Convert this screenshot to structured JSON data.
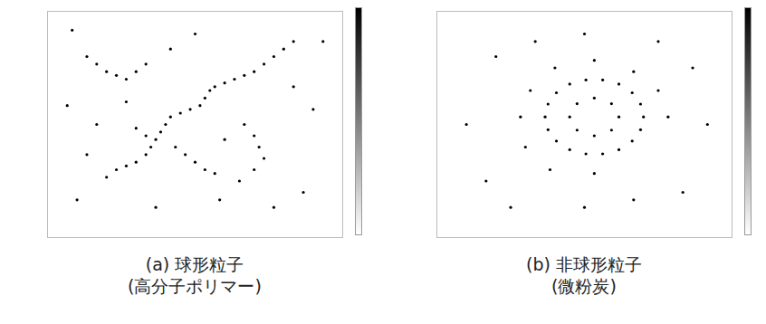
{
  "chart_data": [
    {
      "type": "scatter",
      "caption": [
        "(a) 球形粒子",
        "(高分子ポリマー)"
      ],
      "xlim": [
        -30,
        30
      ],
      "ylim": [
        -30,
        30
      ],
      "tick_labels": false,
      "color": "#000000",
      "marker": "circle",
      "x": [
        -18,
        -16,
        -14,
        -12,
        -10,
        -9,
        -8,
        -7,
        -6,
        -5,
        -3,
        -1,
        1,
        2,
        3,
        4,
        6,
        8,
        10,
        12,
        14,
        16,
        18,
        20,
        -4,
        -2,
        0,
        2,
        4,
        -10,
        -12,
        -22,
        -20,
        -18,
        -16,
        -14,
        -12,
        -10,
        10,
        12,
        13,
        14,
        12,
        9,
        -24,
        -26,
        -20,
        -22,
        22,
        24,
        20,
        5,
        -5,
        0,
        26,
        -8,
        16,
        -25,
        6,
        -14
      ],
      "values": [
        -14,
        -12,
        -11,
        -10,
        -8,
        -6,
        -4,
        -2,
        0,
        2,
        3,
        4,
        5,
        7,
        9,
        10,
        11,
        12,
        13,
        14,
        16,
        18,
        20,
        22,
        -6,
        -8,
        -10,
        -12,
        -13,
        -3,
        -1,
        18,
        16,
        14,
        13,
        12,
        14,
        16,
        0,
        -3,
        -6,
        -9,
        -12,
        -15,
        -20,
        5,
        0,
        -8,
        -18,
        4,
        10,
        -20,
        20,
        24,
        22,
        -22,
        -22,
        25,
        -4,
        6
      ]
    },
    {
      "type": "scatter",
      "caption": [
        "(b) 非球形粒子",
        "(微粉炭)"
      ],
      "xlim": [
        -30,
        30
      ],
      "ylim": [
        -30,
        30
      ],
      "tick_labels": false,
      "color": "#000000",
      "marker": "circle",
      "x": [
        12,
        11.4,
        9.7,
        7,
        3.7,
        0.3,
        -3,
        -5.7,
        -7.4,
        -8,
        -7.4,
        -5.7,
        -3,
        0.3,
        3.7,
        7,
        9.7,
        11.4,
        7,
        5.5,
        2,
        -1.5,
        -3,
        -1.5,
        2,
        5.5,
        17,
        15,
        10,
        2,
        -6,
        -11,
        -13,
        -12,
        -7,
        2,
        -20,
        20,
        22,
        -18,
        -24,
        25,
        0,
        0,
        -15,
        15,
        10,
        -10
      ],
      "values": [
        2,
        5.4,
        8.4,
        10.7,
        11.8,
        11.8,
        10.7,
        8.4,
        5.4,
        2,
        -1.4,
        -4.4,
        -6.7,
        -7.8,
        -7.8,
        -6.7,
        -4.4,
        -1.4,
        2,
        5.5,
        7,
        5.5,
        2,
        -1.5,
        -3,
        -1.5,
        2,
        9,
        14,
        17,
        15,
        9,
        2,
        -6,
        -12,
        -13,
        -15,
        -18,
        15,
        18,
        0,
        0,
        -22,
        24,
        -22,
        22,
        -20,
        22
      ]
    }
  ]
}
